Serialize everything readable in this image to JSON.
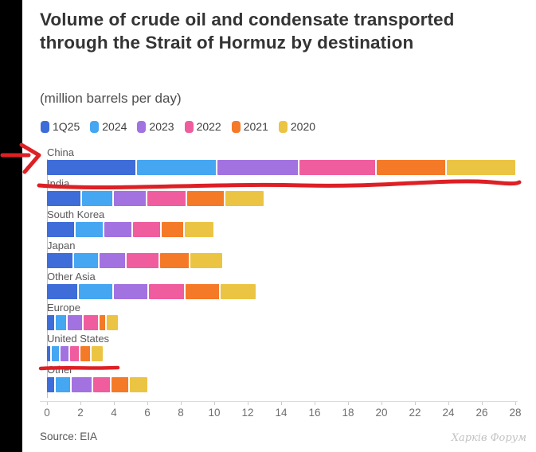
{
  "header": {
    "title": "Volume of crude oil and condensate transported through the Strait of Hormuz by destination",
    "subtitle": "(million barrels per day)"
  },
  "chart_data": {
    "type": "bar",
    "variant": "horizontal-stacked",
    "unit": "million barrels per day",
    "categories": [
      "China",
      "India",
      "South Korea",
      "Japan",
      "Other Asia",
      "Europe",
      "United States",
      "Other"
    ],
    "series": [
      {
        "name": "1Q25",
        "color": "#3e6cd8",
        "values": [
          5.4,
          2.1,
          1.7,
          1.6,
          1.9,
          0.5,
          0.3,
          0.5
        ]
      },
      {
        "name": "2024",
        "color": "#45a6f2",
        "values": [
          4.8,
          1.9,
          1.7,
          1.5,
          2.1,
          0.7,
          0.5,
          0.95
        ]
      },
      {
        "name": "2023",
        "color": "#a272e0",
        "values": [
          4.9,
          2.0,
          1.7,
          1.6,
          2.1,
          0.95,
          0.55,
          1.3
        ]
      },
      {
        "name": "2022",
        "color": "#ef5d9f",
        "values": [
          4.6,
          2.4,
          1.7,
          2.0,
          2.2,
          0.95,
          0.6,
          1.1
        ]
      },
      {
        "name": "2021",
        "color": "#f57a28",
        "values": [
          4.2,
          2.3,
          1.4,
          1.8,
          2.1,
          0.45,
          0.65,
          1.1
        ]
      },
      {
        "name": "2020",
        "color": "#ecc443",
        "values": [
          4.1,
          2.3,
          1.7,
          1.9,
          2.1,
          0.65,
          0.65,
          1.05
        ]
      }
    ],
    "xlim": [
      0,
      28
    ],
    "x_ticks": [
      0,
      2,
      4,
      6,
      8,
      10,
      12,
      14,
      16,
      18,
      20,
      22,
      24,
      26,
      28
    ],
    "legend_position": "top",
    "grid": "bottom-axis-only"
  },
  "footer": {
    "source": "Source: EIA",
    "watermark": "Харків Форум"
  },
  "annotations": {
    "color": "#dd2025",
    "items": [
      "red-arrow-pointing-to-china-row",
      "red-wavy-underline-under-china-bar",
      "red-underline-under-united-states-bar"
    ]
  }
}
